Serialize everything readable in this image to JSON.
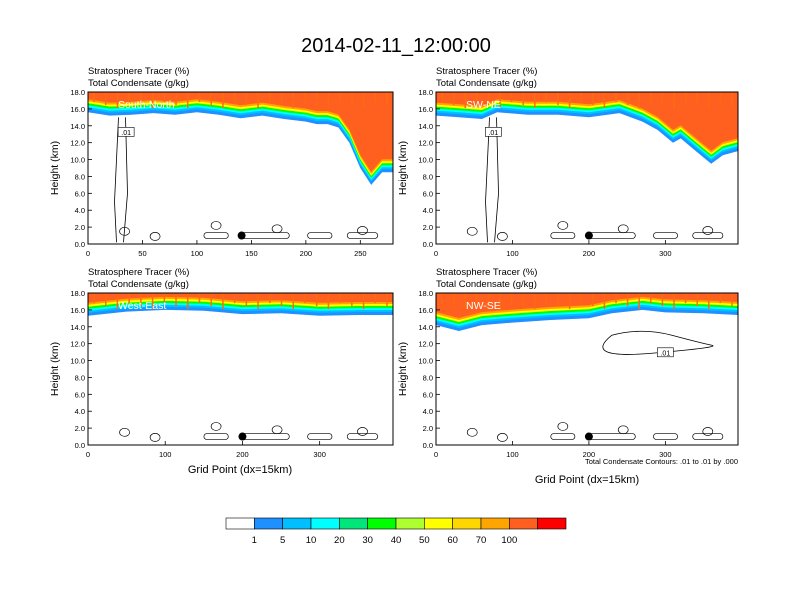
{
  "figure": {
    "title": "2014-02-11_12:00:00",
    "x_axis_title": "Grid Point (dx=15km)",
    "y_axis_title": "Height (km)",
    "header_line1": "Stratosphere Tracer   (%)",
    "header_line2": "Total Condensate   (g/kg)",
    "contour_note": "Total Condensate Contours: .01 to .01 by .000"
  },
  "colorbar": {
    "labels": [
      "1",
      "5",
      "10",
      "20",
      "30",
      "40",
      "50",
      "60",
      "70",
      "100"
    ],
    "colors": [
      "#ffffff",
      "#1e90ff",
      "#00bfff",
      "#00ffff",
      "#00e67a",
      "#00ff00",
      "#adff2f",
      "#ffff00",
      "#ffd700",
      "#ffa500",
      "#ff6020",
      "#ff0000"
    ]
  },
  "chart_data": [
    {
      "type": "heatmap",
      "panel": "South-North",
      "xlim": [
        0,
        280
      ],
      "ylim": [
        0,
        18
      ],
      "xticks": [
        0,
        50,
        100,
        150,
        200,
        250
      ],
      "yticks": [
        "0.0",
        "2.0",
        "4.0",
        "6.0",
        "8.0",
        "10.0",
        "12.0",
        "14.0",
        "16.0",
        "18.0"
      ],
      "tracer_front": [
        [
          0,
          15.6
        ],
        [
          20,
          15.2
        ],
        [
          40,
          15.3
        ],
        [
          60,
          15.5
        ],
        [
          80,
          15.3
        ],
        [
          100,
          15.6
        ],
        [
          120,
          15.3
        ],
        [
          140,
          14.9
        ],
        [
          160,
          15.2
        ],
        [
          180,
          14.8
        ],
        [
          200,
          14.5
        ],
        [
          210,
          14.2
        ],
        [
          220,
          14.2
        ],
        [
          230,
          13.8
        ],
        [
          240,
          12.0
        ],
        [
          250,
          9.0
        ],
        [
          260,
          7.0
        ],
        [
          270,
          8.5
        ],
        [
          280,
          8.5
        ]
      ],
      "contour_label": ".01",
      "dot_x": 141,
      "dot_y": 1.0
    },
    {
      "type": "heatmap",
      "panel": "SW-NE",
      "xlim": [
        0,
        395
      ],
      "ylim": [
        0,
        18
      ],
      "xticks": [
        0,
        100,
        200,
        300
      ],
      "yticks": [
        "0.0",
        "2.0",
        "4.0",
        "6.0",
        "8.0",
        "10.0",
        "12.0",
        "14.0",
        "16.0",
        "18.0"
      ],
      "tracer_front": [
        [
          0,
          15.2
        ],
        [
          30,
          15.0
        ],
        [
          60,
          14.8
        ],
        [
          80,
          15.6
        ],
        [
          120,
          15.3
        ],
        [
          160,
          15.3
        ],
        [
          200,
          15.0
        ],
        [
          240,
          15.5
        ],
        [
          270,
          14.5
        ],
        [
          290,
          13.5
        ],
        [
          310,
          12.0
        ],
        [
          320,
          12.5
        ],
        [
          340,
          11.0
        ],
        [
          360,
          9.5
        ],
        [
          375,
          10.5
        ],
        [
          395,
          11.0
        ]
      ],
      "contour_label": ".01",
      "dot_x": 200,
      "dot_y": 1.0
    },
    {
      "type": "heatmap",
      "panel": "West-East",
      "xlim": [
        0,
        395
      ],
      "ylim": [
        0,
        18
      ],
      "xticks": [
        0,
        100,
        200,
        300
      ],
      "yticks": [
        "0.0",
        "2.0",
        "4.0",
        "6.0",
        "8.0",
        "10.0",
        "12.0",
        "14.0",
        "16.0",
        "18.0"
      ],
      "tracer_front": [
        [
          0,
          15.3
        ],
        [
          50,
          15.8
        ],
        [
          100,
          16.0
        ],
        [
          150,
          15.9
        ],
        [
          200,
          15.5
        ],
        [
          250,
          15.6
        ],
        [
          300,
          15.3
        ],
        [
          350,
          15.4
        ],
        [
          395,
          15.4
        ]
      ],
      "contour_label": "",
      "dot_x": 200,
      "dot_y": 1.0
    },
    {
      "type": "heatmap",
      "panel": "NW-SE",
      "xlim": [
        0,
        395
      ],
      "ylim": [
        0,
        18
      ],
      "xticks": [
        0,
        100,
        200,
        300
      ],
      "yticks": [
        "0.0",
        "2.0",
        "4.0",
        "6.0",
        "8.0",
        "10.0",
        "12.0",
        "14.0",
        "16.0",
        "18.0"
      ],
      "tracer_front": [
        [
          0,
          14.2
        ],
        [
          30,
          13.5
        ],
        [
          60,
          14.2
        ],
        [
          100,
          14.5
        ],
        [
          150,
          14.8
        ],
        [
          200,
          15.0
        ],
        [
          230,
          15.6
        ],
        [
          270,
          16.0
        ],
        [
          300,
          15.7
        ],
        [
          350,
          15.6
        ],
        [
          395,
          15.4
        ]
      ],
      "contour_label": ".01",
      "dot_x": 200,
      "dot_y": 1.0
    }
  ]
}
